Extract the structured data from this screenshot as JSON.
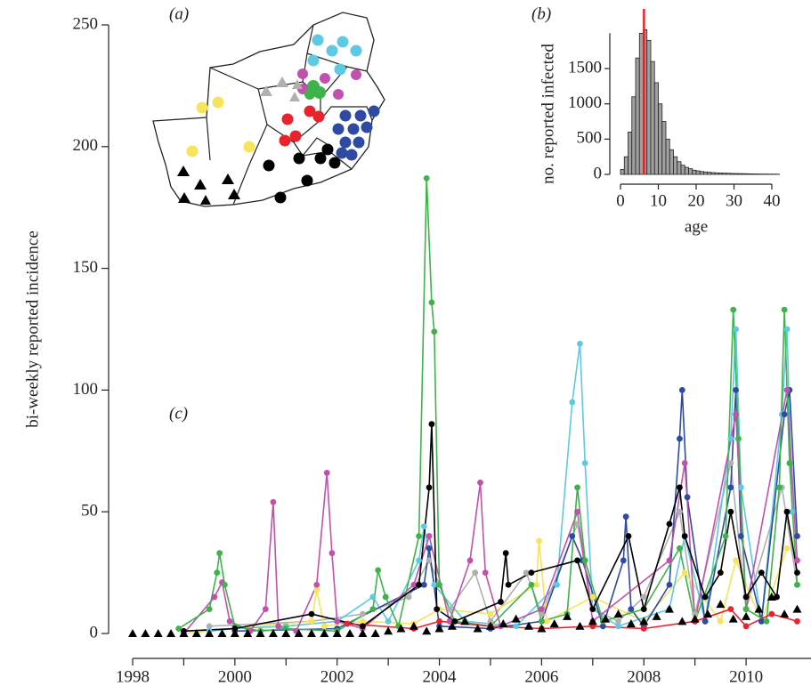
{
  "map": {
    "panel_label": "(a)"
  },
  "chart_data": [
    {
      "type": "line",
      "panel_label": "(c)",
      "ylabel": "bi-weekly reported incidence",
      "xlim": [
        1998,
        2011.27
      ],
      "ylim": [
        0,
        250
      ],
      "xticks": [
        1998,
        2000,
        2002,
        2004,
        2006,
        2008,
        2010
      ],
      "xminor_ticks": [
        1999,
        2001,
        2003,
        2005,
        2007,
        2009
      ],
      "yticks": [
        0,
        50,
        100,
        150,
        200,
        250
      ],
      "series": [
        {
          "color": "#b0b0b0",
          "marker": "circle",
          "x": [
            1999.5,
            2001.5,
            2002.5,
            2003.4,
            2003.8,
            2004.2,
            2004.7,
            2005.0,
            2005.7,
            2006.0,
            2006.7,
            2007.0,
            2007.5,
            2008.0,
            2008.7,
            2009.0,
            2009.7,
            2010.0,
            2010.7,
            2011.0
          ],
          "values": [
            3,
            5,
            8,
            15,
            30,
            10,
            25,
            5,
            25,
            8,
            45,
            10,
            5,
            15,
            50,
            8,
            70,
            10,
            60,
            20
          ]
        },
        {
          "color": "#f6e45b",
          "marker": "circle",
          "x": [
            1999.0,
            2001.5,
            2001.6,
            2001.75,
            2002.5,
            2003.5,
            2004.0,
            2005.0,
            2005.9,
            2005.95,
            2006.1,
            2007.0,
            2008.0,
            2008.8,
            2009.5,
            2009.8,
            2010.3,
            2010.8
          ],
          "values": [
            0,
            5,
            18,
            3,
            5,
            4,
            10,
            8,
            20,
            38,
            5,
            15,
            5,
            25,
            5,
            30,
            5,
            35
          ]
        },
        {
          "color": "#5dc9e2",
          "marker": "circle",
          "x": [
            1999.5,
            2000.0,
            2001.0,
            2002.0,
            2002.7,
            2003.0,
            2003.6,
            2003.7,
            2003.9,
            2004.5,
            2005.5,
            2006.3,
            2006.6,
            2006.75,
            2006.85,
            2007.0,
            2007.5,
            2008.5,
            2008.8,
            2009.2,
            2009.7,
            2009.8,
            2009.9,
            2010.3,
            2010.7,
            2010.8,
            2010.9
          ],
          "values": [
            1,
            2,
            3,
            5,
            15,
            5,
            30,
            44,
            20,
            5,
            3,
            20,
            95,
            119,
            70,
            10,
            3,
            10,
            40,
            5,
            80,
            125,
            60,
            5,
            90,
            125,
            50
          ]
        },
        {
          "color": "#2e4aa3",
          "marker": "circle",
          "x": [
            2000.0,
            2002.0,
            2003.7,
            2003.8,
            2004.0,
            2005.0,
            2006.0,
            2006.6,
            2006.8,
            2007.2,
            2007.6,
            2007.65,
            2007.75,
            2008.0,
            2008.5,
            2008.7,
            2008.75,
            2008.85,
            2009.2,
            2009.7,
            2009.8,
            2009.9,
            2010.3,
            2010.75,
            2010.85,
            2011.0
          ],
          "values": [
            1,
            2,
            20,
            35,
            3,
            2,
            5,
            40,
            30,
            3,
            30,
            48,
            10,
            3,
            20,
            80,
            100,
            56,
            5,
            60,
            100,
            40,
            5,
            90,
            100,
            40
          ]
        },
        {
          "color": "#c151ad",
          "marker": "circle",
          "x": [
            1999.0,
            1999.6,
            1999.75,
            1999.9,
            2000.3,
            2000.6,
            2000.75,
            2000.85,
            2001.2,
            2001.6,
            2001.8,
            2001.9,
            2002.0,
            2002.5,
            2003.5,
            2003.8,
            2004.2,
            2004.6,
            2004.8,
            2004.9,
            2005.2,
            2006.0,
            2006.7,
            2007.0,
            2008.5,
            2008.8,
            2009.0,
            2009.8,
            2010.0,
            2010.8,
            2011.0
          ],
          "values": [
            0,
            15,
            21,
            5,
            1,
            10,
            54,
            3,
            1,
            20,
            66,
            33,
            5,
            2,
            20,
            40,
            5,
            30,
            62,
            25,
            3,
            10,
            50,
            5,
            30,
            70,
            5,
            90,
            10,
            100,
            30
          ]
        },
        {
          "color": "#3db34a",
          "marker": "circle",
          "x": [
            1998.9,
            1999.5,
            1999.65,
            1999.7,
            1999.8,
            2000.0,
            2000.5,
            2001.0,
            2002.0,
            2002.7,
            2002.8,
            2002.95,
            2003.2,
            2003.6,
            2003.75,
            2003.85,
            2003.9,
            2004.0,
            2004.3,
            2005.0,
            2005.8,
            2006.0,
            2006.5,
            2006.7,
            2006.85,
            2007.2,
            2008.0,
            2008.7,
            2009.0,
            2009.6,
            2009.75,
            2009.85,
            2010.0,
            2010.4,
            2010.65,
            2010.75,
            2010.85,
            2011.0
          ],
          "values": [
            2,
            10,
            25,
            33,
            20,
            3,
            1,
            2,
            1,
            10,
            26,
            15,
            3,
            40,
            187,
            136,
            124,
            20,
            5,
            3,
            20,
            5,
            8,
            60,
            30,
            5,
            10,
            35,
            5,
            40,
            133,
            80,
            10,
            5,
            60,
            133,
            70,
            20
          ]
        },
        {
          "color": "#000000",
          "marker": "circle",
          "x": [
            1999.0,
            2000.0,
            2001.5,
            2002.5,
            2003.6,
            2003.8,
            2003.85,
            2003.95,
            2004.3,
            2005.2,
            2005.3,
            2005.35,
            2005.8,
            2006.7,
            2007.0,
            2007.7,
            2008.0,
            2008.5,
            2008.7,
            2008.8,
            2009.2,
            2009.5,
            2009.7,
            2010.0,
            2010.3,
            2010.6,
            2010.8,
            2011.0
          ],
          "values": [
            1,
            2,
            8,
            3,
            20,
            60,
            86,
            10,
            5,
            13,
            33,
            20,
            25,
            30,
            10,
            40,
            10,
            45,
            60,
            40,
            15,
            25,
            50,
            15,
            25,
            15,
            50,
            25
          ]
        },
        {
          "color": "#e8232b",
          "marker": "circle",
          "x": [
            2002.2,
            2003.5,
            2004.0,
            2005.0,
            2006.0,
            2007.0,
            2008.0,
            2009.0,
            2009.7,
            2010.0,
            2010.5,
            2011.0
          ],
          "values": [
            4,
            2,
            5,
            3,
            2,
            3,
            2,
            5,
            10,
            3,
            8,
            5
          ]
        },
        {
          "color": "#000000",
          "marker": "triangle",
          "line": false,
          "x": [
            1998.0,
            1998.25,
            1998.5,
            1998.75,
            1999.0,
            1999.25,
            1999.5,
            1999.75,
            2000.0,
            2000.25,
            2000.5,
            2000.75,
            2001.0,
            2001.25,
            2001.5,
            2001.75,
            2002.0,
            2002.25,
            2002.5,
            2002.75,
            2003.0,
            2003.25,
            2003.5,
            2003.75,
            2004.0,
            2004.25,
            2004.5,
            2004.75,
            2005.0,
            2005.25,
            2005.5,
            2005.75,
            2006.0,
            2006.25,
            2006.5,
            2006.75,
            2007.0,
            2007.25,
            2007.5,
            2007.75,
            2008.0,
            2008.25,
            2008.5,
            2008.75,
            2009.0,
            2009.25,
            2009.5,
            2009.75,
            2010.0,
            2010.25,
            2010.5,
            2010.75,
            2011.0
          ],
          "values": [
            0,
            0,
            0,
            0,
            0,
            0,
            0,
            0,
            0,
            0,
            0,
            0,
            0,
            0,
            0,
            0,
            0,
            0,
            0,
            0,
            1,
            2,
            3,
            1,
            2,
            3,
            5,
            2,
            3,
            4,
            6,
            3,
            2,
            4,
            7,
            3,
            5,
            6,
            8,
            4,
            5,
            7,
            10,
            5,
            6,
            8,
            12,
            6,
            7,
            10,
            15,
            8,
            10
          ]
        }
      ]
    },
    {
      "type": "histogram",
      "panel_label": "(b)",
      "xlabel": "age",
      "ylabel": "no. reported infected",
      "bins": [
        0,
        1,
        2,
        3,
        4,
        5,
        6,
        7,
        8,
        9,
        10,
        11,
        12,
        13,
        14,
        15,
        16,
        17,
        18,
        19,
        20,
        21,
        22,
        23,
        24,
        25,
        26,
        27,
        28,
        29,
        30,
        31,
        32,
        33,
        34,
        35,
        36,
        37,
        38,
        39,
        40,
        41,
        42
      ],
      "values": [
        70,
        250,
        600,
        1100,
        1650,
        2000,
        2050,
        1900,
        1600,
        1300,
        1000,
        750,
        500,
        350,
        250,
        180,
        130,
        100,
        80,
        60,
        50,
        40,
        35,
        30,
        25,
        22,
        20,
        18,
        16,
        14,
        12,
        11,
        10,
        9,
        8,
        7,
        6,
        5,
        5,
        4,
        4,
        3
      ],
      "color": "#a0a0a0",
      "vline": 6.2,
      "vline_color": "#e8232b",
      "xlim": [
        0,
        42
      ],
      "ylim": [
        0,
        2000
      ],
      "xticks": [
        0,
        10,
        20,
        30,
        40
      ],
      "yticks": [
        0,
        500,
        1000,
        1500
      ]
    }
  ]
}
